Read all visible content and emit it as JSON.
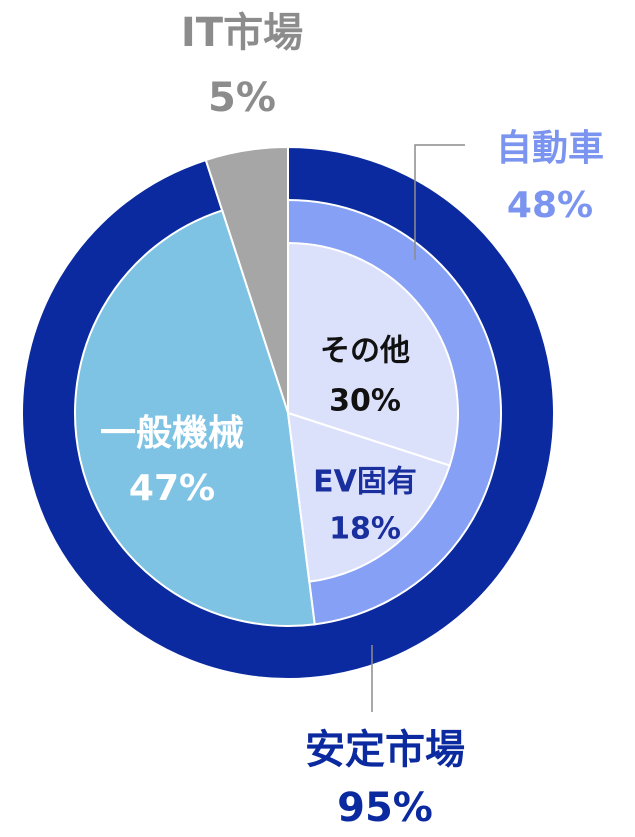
{
  "chart_data": {
    "type": "nested-pie",
    "rings": [
      {
        "names": [
          "安定市場",
          "IT市場"
        ],
        "values": [
          95,
          5
        ],
        "value_labels": [
          "95%",
          "5%"
        ],
        "colors": [
          "#0b2a9f",
          "#a6a6a6"
        ],
        "label_colors": [
          "#0b2a9f",
          "#8c8c8c"
        ]
      },
      {
        "names": [
          "自動車",
          "一般機械"
        ],
        "values": [
          48,
          47
        ],
        "value_labels": [
          "48%",
          "47%"
        ],
        "colors": [
          "#85a0f4",
          "#7fc3e4"
        ],
        "label_colors": [
          "#7b94f0",
          "#ffffff"
        ]
      },
      {
        "names": [
          "その他",
          "EV固有"
        ],
        "values": [
          30,
          18
        ],
        "value_labels": [
          "30%",
          "18%"
        ],
        "colors": [
          "#dce1fb",
          "#dce1fb"
        ],
        "label_colors": [
          "#111111",
          "#1a2f9e"
        ]
      }
    ]
  }
}
